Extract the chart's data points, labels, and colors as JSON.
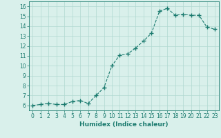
{
  "x": [
    0,
    1,
    2,
    3,
    4,
    5,
    6,
    7,
    8,
    9,
    10,
    11,
    12,
    13,
    14,
    15,
    16,
    17,
    18,
    19,
    20,
    21,
    22,
    23
  ],
  "y": [
    6.0,
    6.1,
    6.2,
    6.1,
    6.1,
    6.4,
    6.5,
    6.2,
    7.0,
    7.8,
    10.0,
    11.1,
    11.2,
    11.8,
    12.5,
    13.3,
    15.5,
    15.8,
    15.1,
    15.2,
    15.1,
    15.1,
    13.9,
    13.7
  ],
  "line_color": "#1a7a6e",
  "marker": "+",
  "marker_size": 4,
  "bg_color": "#d9f0eb",
  "grid_color": "#b0d8d0",
  "xlabel": "Humidex (Indice chaleur)",
  "xlim": [
    -0.5,
    23.5
  ],
  "ylim": [
    5.5,
    16.5
  ],
  "yticks": [
    6,
    7,
    8,
    9,
    10,
    11,
    12,
    13,
    14,
    15,
    16
  ],
  "xticks": [
    0,
    1,
    2,
    3,
    4,
    5,
    6,
    7,
    8,
    9,
    10,
    11,
    12,
    13,
    14,
    15,
    16,
    17,
    18,
    19,
    20,
    21,
    22,
    23
  ],
  "tick_fontsize": 5.5,
  "xlabel_fontsize": 6.5
}
